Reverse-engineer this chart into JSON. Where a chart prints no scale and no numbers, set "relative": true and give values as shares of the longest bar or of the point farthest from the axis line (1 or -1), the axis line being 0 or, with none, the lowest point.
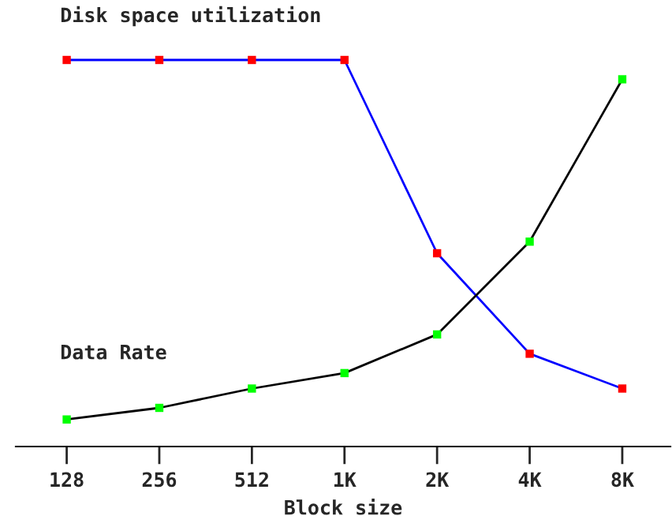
{
  "chart_data": {
    "type": "line",
    "relative": true,
    "xlabel": "Block size",
    "marker": "square",
    "grid": false,
    "legend": false,
    "categories": [
      "128",
      "256",
      "512",
      "1K",
      "2K",
      "4K",
      "8K"
    ],
    "series": [
      {
        "name": "Disk space utilization",
        "color": "#0000ff",
        "colors": [
          "#ff0000",
          "#ff0000",
          "#ff0000",
          "#ff0000",
          "#ff0000",
          "#ff0000",
          "#ff0000"
        ],
        "values": [
          1,
          1,
          1,
          1,
          0.5,
          0.24,
          0.15
        ]
      },
      {
        "name": "Data Rate",
        "color": "#000000",
        "colors": [
          "#00ff00",
          "#00ff00",
          "#00ff00",
          "#00ff00",
          "#00ff00",
          "#00ff00",
          "#00ff00"
        ],
        "values": [
          0.07,
          0.1,
          0.15,
          0.19,
          0.29,
          0.53,
          0.95
        ]
      }
    ]
  }
}
